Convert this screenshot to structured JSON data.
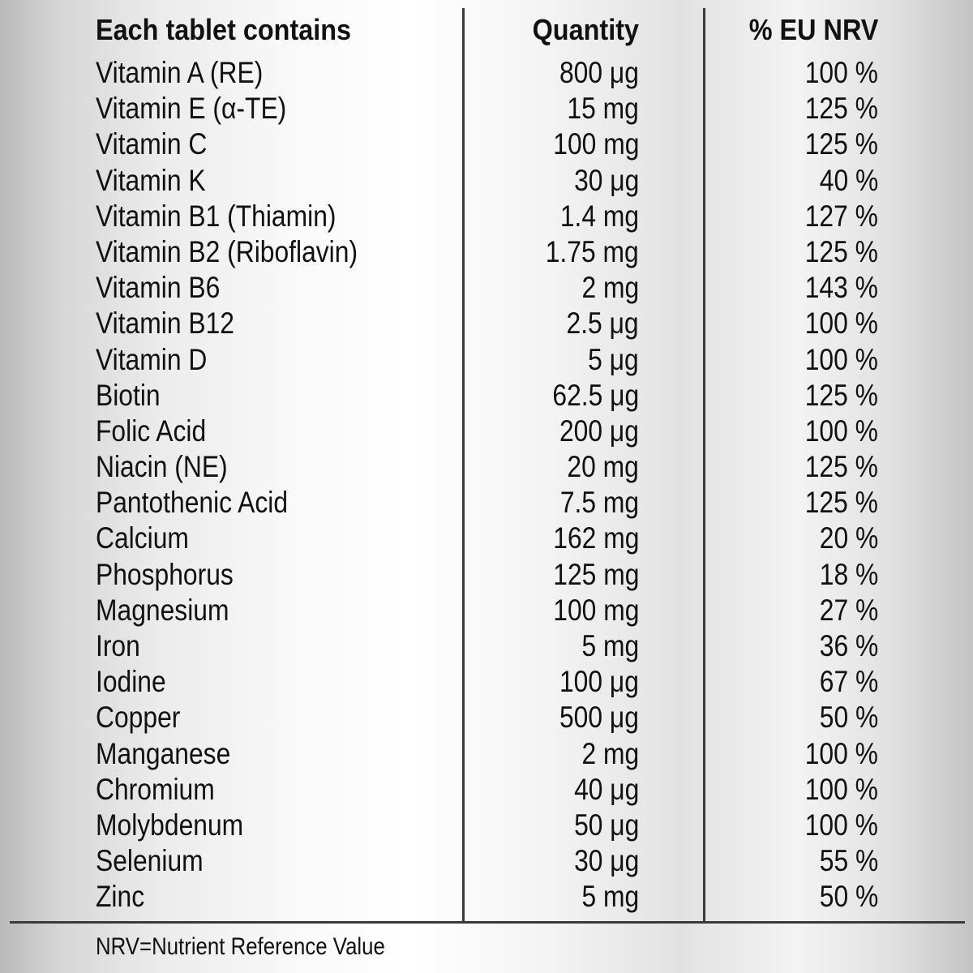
{
  "table": {
    "headers": [
      "Each tablet contains",
      "Quantity",
      "% EU NRV"
    ],
    "rows": [
      {
        "name": "Vitamin A (RE)",
        "quantity": "800 μg",
        "nrv": "100 %"
      },
      {
        "name": "Vitamin E (α-TE)",
        "quantity": "15 mg",
        "nrv": "125 %"
      },
      {
        "name": "Vitamin C",
        "quantity": "100 mg",
        "nrv": "125 %"
      },
      {
        "name": "Vitamin K",
        "quantity": "30 μg",
        "nrv": "40 %"
      },
      {
        "name": "Vitamin B1 (Thiamin)",
        "quantity": "1.4 mg",
        "nrv": "127 %"
      },
      {
        "name": "Vitamin B2 (Riboflavin)",
        "quantity": "1.75 mg",
        "nrv": "125 %"
      },
      {
        "name": "Vitamin B6",
        "quantity": "2 mg",
        "nrv": "143 %"
      },
      {
        "name": "Vitamin B12",
        "quantity": "2.5 μg",
        "nrv": "100 %"
      },
      {
        "name": "Vitamin D",
        "quantity": "5 μg",
        "nrv": "100 %"
      },
      {
        "name": "Biotin",
        "quantity": "62.5 μg",
        "nrv": "125 %"
      },
      {
        "name": "Folic Acid",
        "quantity": "200 μg",
        "nrv": "100 %"
      },
      {
        "name": "Niacin (NE)",
        "quantity": "20 mg",
        "nrv": "125 %"
      },
      {
        "name": "Pantothenic Acid",
        "quantity": "7.5 mg",
        "nrv": "125 %"
      },
      {
        "name": "Calcium",
        "quantity": "162 mg",
        "nrv": "20 %"
      },
      {
        "name": "Phosphorus",
        "quantity": "125 mg",
        "nrv": "18 %"
      },
      {
        "name": "Magnesium",
        "quantity": "100 mg",
        "nrv": "27 %"
      },
      {
        "name": "Iron",
        "quantity": "5 mg",
        "nrv": "36 %"
      },
      {
        "name": "Iodine",
        "quantity": "100 μg",
        "nrv": "67 %"
      },
      {
        "name": "Copper",
        "quantity": "500 μg",
        "nrv": "50 %"
      },
      {
        "name": "Manganese",
        "quantity": "2 mg",
        "nrv": "100 %"
      },
      {
        "name": "Chromium",
        "quantity": "40 μg",
        "nrv": "100 %"
      },
      {
        "name": "Molybdenum",
        "quantity": "50 μg",
        "nrv": "100 %"
      },
      {
        "name": "Selenium",
        "quantity": "30 μg",
        "nrv": "55 %"
      },
      {
        "name": "Zinc",
        "quantity": "5 mg",
        "nrv": "50 %"
      }
    ]
  },
  "footnote": "NRV=Nutrient Reference Value",
  "colors": {
    "text": "#111111",
    "rule": "#3a3a3a",
    "background": "#f4f4f4"
  }
}
